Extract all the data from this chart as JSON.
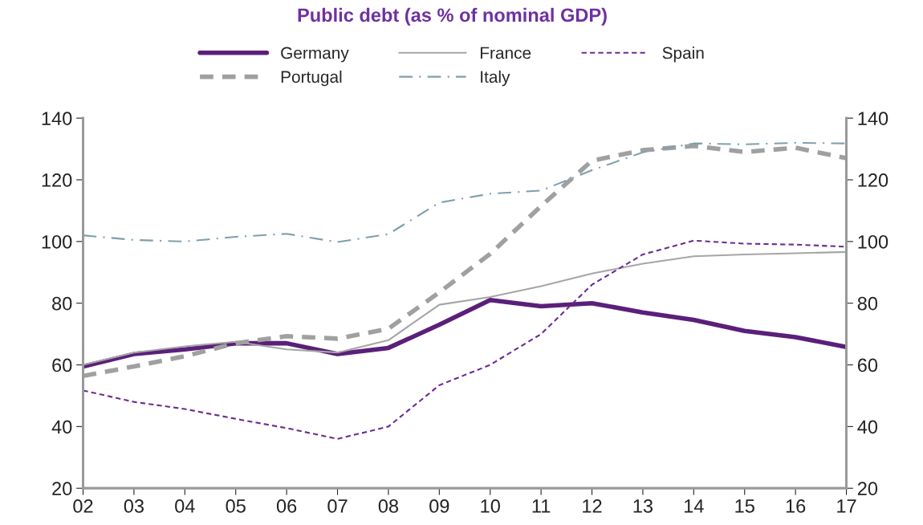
{
  "chart_data": {
    "type": "line",
    "title": "Public debt (as % of nominal GDP)",
    "categories": [
      "02",
      "03",
      "04",
      "05",
      "06",
      "07",
      "08",
      "09",
      "10",
      "11",
      "12",
      "13",
      "14",
      "15",
      "16",
      "17"
    ],
    "series": [
      {
        "name": "Germany",
        "color": "#5b1f7a",
        "line_style": "solid",
        "values": [
          59.5,
          63.5,
          65,
          67,
          67,
          63.5,
          65.5,
          73,
          81,
          79,
          80,
          77,
          74.6,
          71,
          69,
          65.8
        ]
      },
      {
        "name": "France",
        "color": "#a6a6a6",
        "line_style": "solid",
        "values": [
          60,
          64,
          66,
          67.5,
          65,
          64,
          68,
          79.5,
          82,
          85.5,
          89.6,
          92.8,
          95.2,
          95.8,
          96.2,
          96.6
        ]
      },
      {
        "name": "Spain",
        "color": "#6b2c91",
        "line_style": "dashed",
        "values": [
          51.7,
          48,
          45.7,
          42.5,
          39.5,
          36,
          40,
          53.4,
          60,
          70,
          86,
          95.8,
          100.3,
          99.3,
          99,
          98.3
        ]
      },
      {
        "name": "Portugal",
        "color": "#a0a0a0",
        "line_style": "dashed",
        "values": [
          56.4,
          59.5,
          62.8,
          67,
          69.3,
          68.5,
          71.7,
          83.5,
          96,
          111.5,
          126.2,
          129.6,
          131,
          129,
          130.4,
          127
        ]
      },
      {
        "name": "Italy",
        "color": "#7f9fae",
        "line_style": "dashdot",
        "values": [
          102,
          100.5,
          100,
          101.5,
          102.5,
          99.8,
          102.4,
          112.6,
          115.5,
          116.5,
          123.1,
          128.9,
          131.8,
          131.5,
          132,
          131.8
        ]
      }
    ],
    "ylim": [
      20,
      140
    ],
    "yticks": [
      20,
      40,
      60,
      80,
      100,
      120,
      140
    ],
    "y2lim": [
      20,
      140
    ],
    "y2ticks": [
      20,
      40,
      60,
      80,
      100,
      120,
      140
    ],
    "legend": "top",
    "grid": false
  }
}
